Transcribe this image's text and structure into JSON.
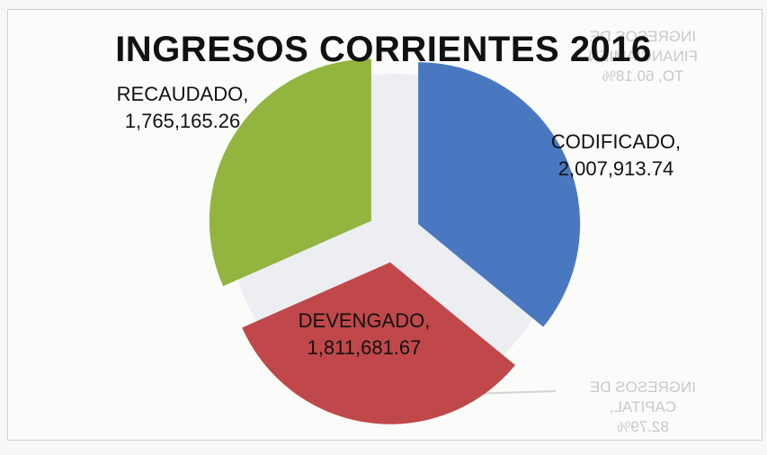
{
  "chart_data": {
    "type": "pie",
    "exploded": true,
    "title": "INGRESOS CORRIENTES 2016",
    "categories": [
      "CODIFICADO",
      "DEVENGADO",
      "RECAUDADO"
    ],
    "values": [
      2007913.74,
      1811681.67,
      1765165.26
    ],
    "value_labels": [
      "2,007,913.74",
      "1,811,681.67",
      "1,765,165.26"
    ],
    "colors": [
      "#4a78c0",
      "#c0484a",
      "#93b43f"
    ],
    "legend": "none"
  },
  "bleed_through": {
    "top_right": [
      "INGRESOS DE",
      "FINANCIAMIEN",
      "TO, 60.18%"
    ],
    "bottom_right": [
      "INGRESOS DE",
      "CAPITAL,",
      "82.79%"
    ]
  }
}
